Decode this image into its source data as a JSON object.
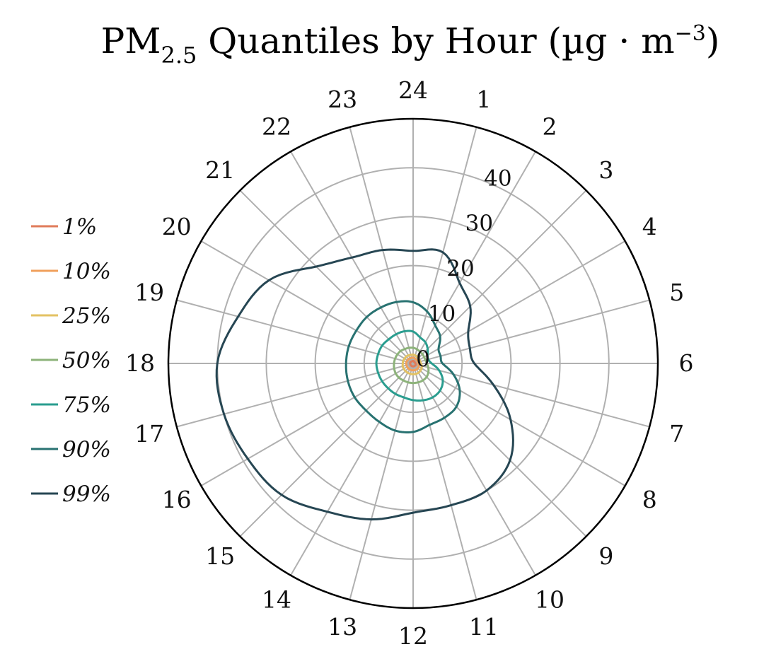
{
  "chart_data": {
    "type": "polar-line",
    "title_parts": {
      "pre": "PM",
      "sub": "2.5",
      "mid": " Quantiles by Hour (µg · m",
      "sup": "−3",
      "post": ")"
    },
    "angle_ticks": [
      "24",
      "1",
      "2",
      "3",
      "4",
      "5",
      "6",
      "7",
      "8",
      "9",
      "10",
      "11",
      "12",
      "13",
      "14",
      "15",
      "16",
      "17",
      "18",
      "19",
      "20",
      "21",
      "22",
      "23"
    ],
    "radial_ticks": [
      0,
      10,
      20,
      30,
      40
    ],
    "rlim": [
      0,
      50
    ],
    "grid": true,
    "legend_position": "left",
    "hours": [
      0,
      1,
      2,
      3,
      4,
      5,
      6,
      7,
      8,
      9,
      10,
      11,
      12,
      13,
      14,
      15,
      16,
      17,
      18,
      19,
      20,
      21,
      22,
      23
    ],
    "series": [
      {
        "name": "1%",
        "color": "#e07b5a",
        "values": [
          0.5,
          0.5,
          0.4,
          0.4,
          0.4,
          0.4,
          0.5,
          0.5,
          0.6,
          0.6,
          0.6,
          0.6,
          0.6,
          0.6,
          0.6,
          0.6,
          0.6,
          0.6,
          0.6,
          0.6,
          0.6,
          0.5,
          0.5,
          0.5
        ]
      },
      {
        "name": "10%",
        "color": "#f0a05c",
        "values": [
          1.2,
          1.1,
          1.0,
          1.0,
          1.0,
          1.0,
          1.1,
          1.2,
          1.3,
          1.4,
          1.4,
          1.4,
          1.4,
          1.4,
          1.4,
          1.4,
          1.4,
          1.4,
          1.4,
          1.4,
          1.3,
          1.3,
          1.2,
          1.2
        ]
      },
      {
        "name": "25%",
        "color": "#e3c263",
        "values": [
          1.8,
          1.7,
          1.6,
          1.5,
          1.5,
          1.5,
          1.6,
          1.8,
          2.0,
          2.1,
          2.2,
          2.2,
          2.2,
          2.2,
          2.2,
          2.2,
          2.2,
          2.2,
          2.1,
          2.1,
          2.0,
          2.0,
          1.9,
          1.8
        ]
      },
      {
        "name": "50%",
        "color": "#8db37a",
        "values": [
          3.2,
          3.0,
          2.8,
          2.7,
          2.6,
          2.6,
          2.8,
          3.2,
          3.6,
          3.9,
          4.0,
          4.0,
          4.0,
          4.0,
          4.0,
          4.1,
          4.1,
          4.0,
          3.9,
          3.8,
          3.7,
          3.6,
          3.4,
          3.3
        ]
      },
      {
        "name": "75%",
        "color": "#2a9d8f",
        "values": [
          6.5,
          5.5,
          5.0,
          4.2,
          3.4,
          3.2,
          3.8,
          5.5,
          7.0,
          7.8,
          8.0,
          7.8,
          7.5,
          7.2,
          7.2,
          7.2,
          7.3,
          7.4,
          7.5,
          7.4,
          7.3,
          7.0,
          6.9,
          6.8
        ]
      },
      {
        "name": "90%",
        "color": "#287271",
        "values": [
          12.5,
          11.0,
          9.0,
          7.8,
          6.0,
          5.8,
          6.0,
          8.5,
          11.0,
          12.5,
          12.8,
          13.0,
          14.0,
          14.2,
          13.8,
          13.6,
          13.8,
          13.8,
          13.7,
          13.6,
          13.4,
          13.4,
          13.2,
          13.0
        ]
      },
      {
        "name": "99%",
        "color": "#264653",
        "values": [
          23,
          23.5,
          19,
          16.5,
          13,
          12,
          12.5,
          17,
          23,
          28,
          30,
          30,
          30.5,
          33,
          35,
          38,
          39,
          40,
          40,
          37,
          34,
          28,
          25,
          24
        ]
      }
    ]
  }
}
